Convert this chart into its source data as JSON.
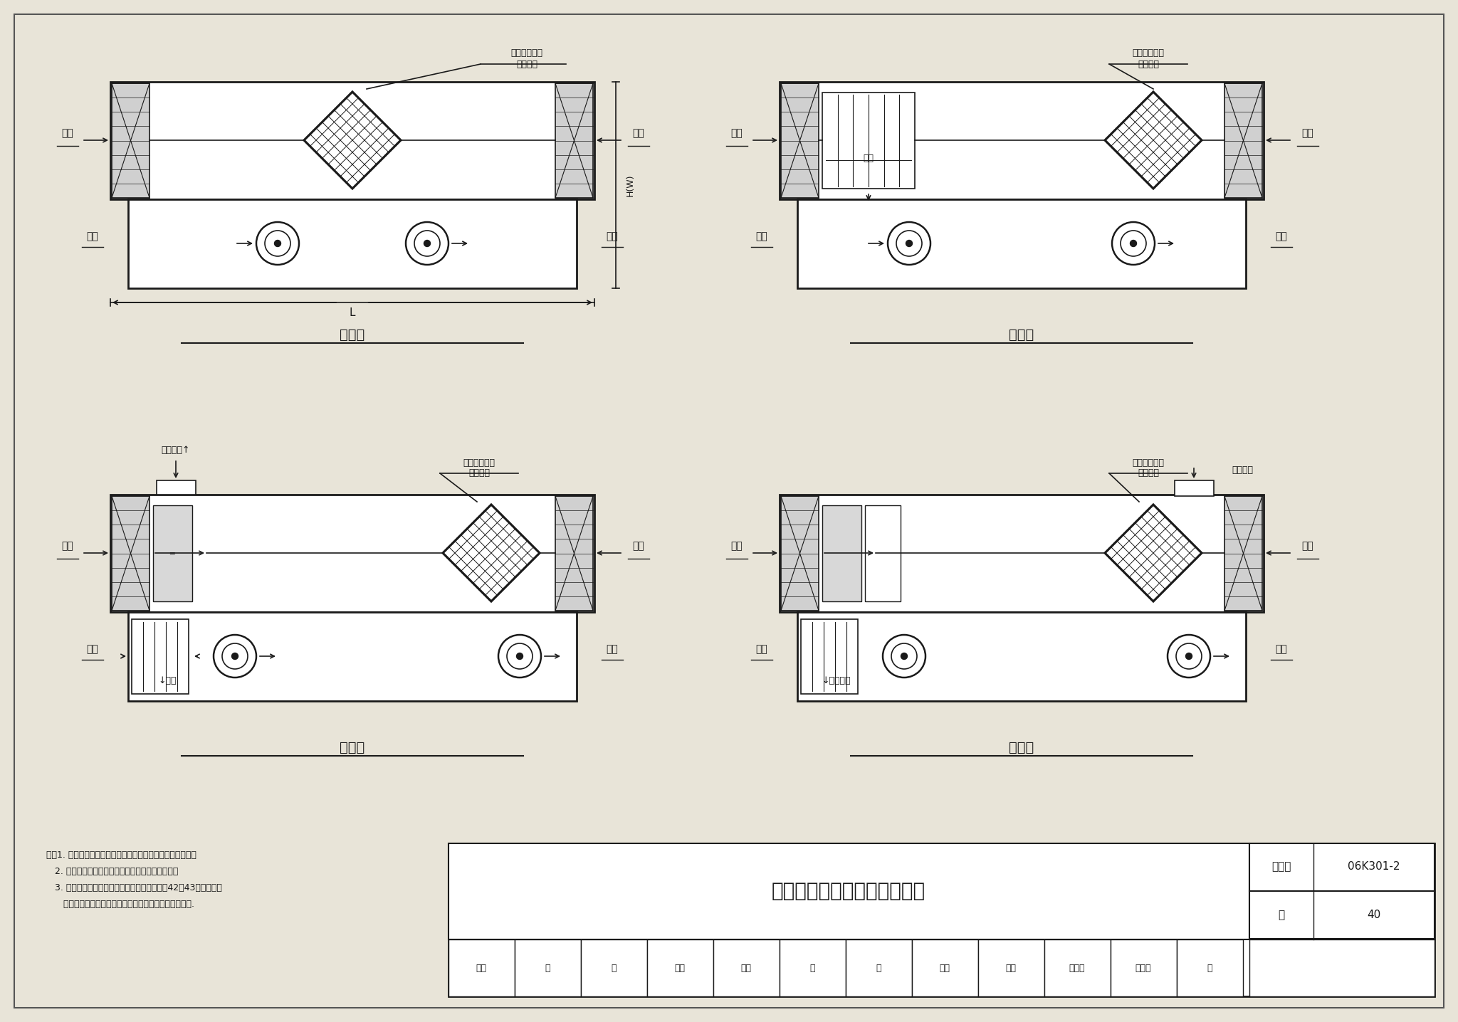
{
  "bg_color": "#e8e4d8",
  "line_color": "#1a1a1a",
  "white": "#ffffff",
  "title": "组合式热回收机组组合示意图",
  "figure_label": "图集号",
  "figure_code": "06K301-2",
  "page_label": "页",
  "page_num": "40",
  "diagram_titles": [
    "方式一",
    "方式二",
    "方式三",
    "方式四"
  ],
  "heat_rec_label1": "板（板翅）式",
  "heat_rec_label2": "热回收器",
  "bypass_label": "旁通排风↑",
  "second_return_label": "二次回风",
  "first_return_label": "一次回风",
  "notes_line1": "注：1. 方式一～方式四设置的机组，适合于水平或叠式布置。",
  "notes_line2": "   2. 中效过滤、冷热盘管以及加湿器均为可选内容。",
  "notes_line3": "   3. 标注尺寸的组合方式相关数据可在本图集第42、43页中查取，",
  "notes_line4": "      其他组合方式的产品数据可参考企业产品样本或其网站.",
  "L_label": "L",
  "HW_label": "H(W)"
}
